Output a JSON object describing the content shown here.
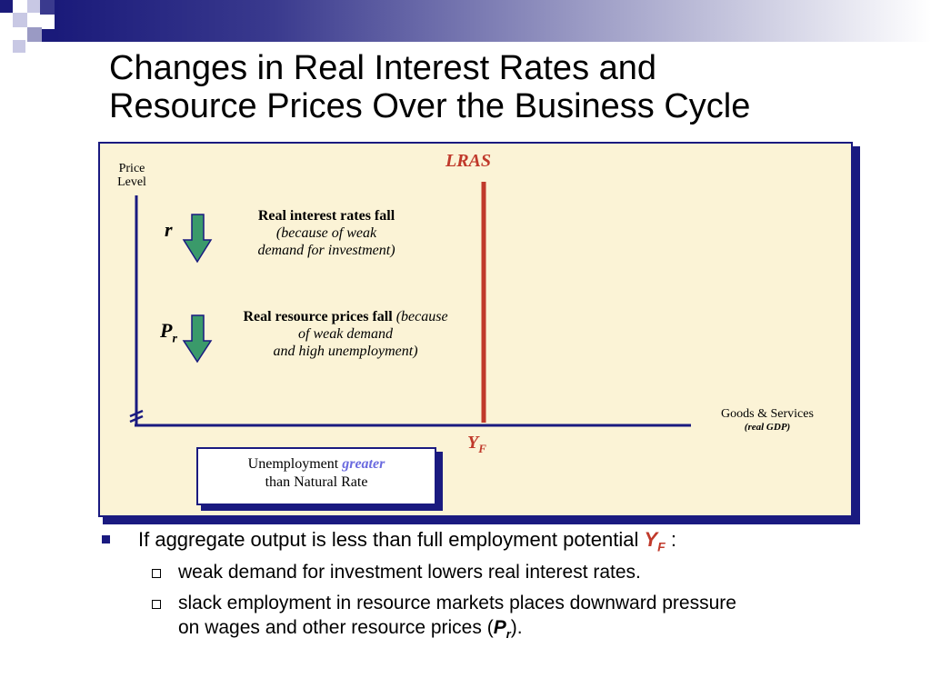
{
  "slide": {
    "title_line1": "Changes in Real Interest Rates and",
    "title_line2": "Resource Prices Over the Business Cycle"
  },
  "diagram": {
    "y_axis_label_1": "Price",
    "y_axis_label_2": "Level",
    "x_axis_label": "Goods & Services",
    "x_axis_sublabel": "(real GDP)",
    "lras_label": "LRAS",
    "yf_label": "Y",
    "yf_sub": "F",
    "r_symbol": "r",
    "pr_symbol": "P",
    "pr_sub": "r",
    "r_note_bold": "Real interest rates fall",
    "r_note_line2": "(because of weak",
    "r_note_line3": "demand for investment)",
    "pr_note_bold": "Real resource prices fall",
    "pr_note_italic1": "(because",
    "pr_note_line2": "of weak demand",
    "pr_note_line3": "and high unemployment)",
    "unemp_text1": "Unemployment",
    "unemp_greater": "greater",
    "unemp_text2": "than Natural Rate",
    "colors": {
      "lras": "#c0392b",
      "arrow_fill": "#3a9a6a",
      "panel_bg": "#fbf3d6",
      "axis": "#1a1a80"
    },
    "icons": [
      "down-arrow-icon",
      "down-arrow-icon",
      "axis-break-icon"
    ]
  },
  "bullets": {
    "b1_text": "If aggregate output is less than full employment potential",
    "b1_yf": "Y",
    "b1_yf_sub": "F",
    "b1_colon": ":",
    "b2a_text": "weak demand for investment lowers real interest rates.",
    "b2b_line1": "slack employment in resource markets places downward pressure",
    "b2b_line2_pre": "on wages and other resource prices (",
    "b2b_pr": "P",
    "b2b_pr_sub": "r",
    "b2b_line2_post": ")."
  }
}
